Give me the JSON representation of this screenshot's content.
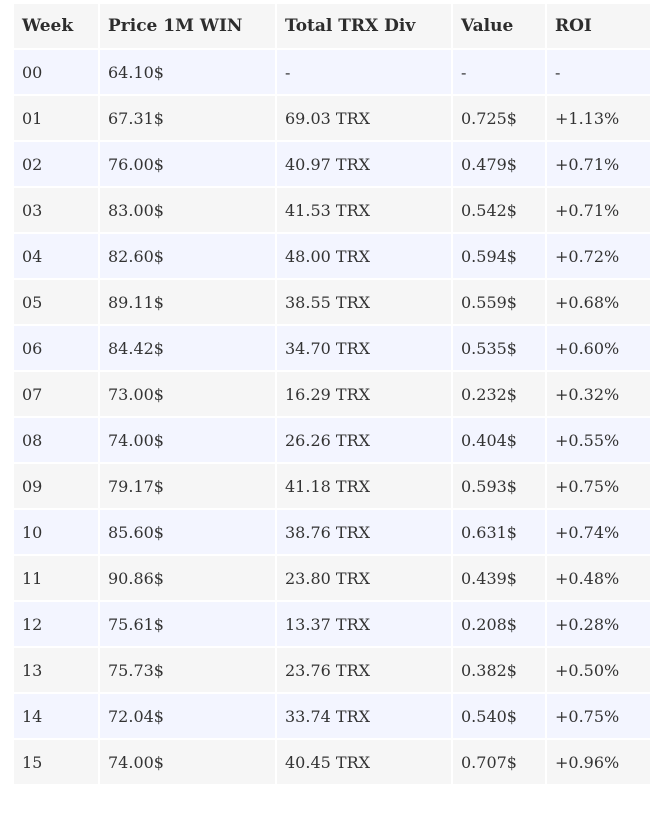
{
  "table": {
    "headers": [
      "Week",
      "Price 1M WIN",
      "Total TRX Div",
      "Value",
      "ROI"
    ],
    "rows": [
      [
        "00",
        "64.10$",
        "-",
        "-",
        "-"
      ],
      [
        "01",
        "67.31$",
        "69.03 TRX",
        "0.725$",
        "+1.13%"
      ],
      [
        "02",
        "76.00$",
        "40.97 TRX",
        "0.479$",
        "+0.71%"
      ],
      [
        "03",
        "83.00$",
        "41.53 TRX",
        "0.542$",
        "+0.71%"
      ],
      [
        "04",
        "82.60$",
        "48.00 TRX",
        "0.594$",
        "+0.72%"
      ],
      [
        "05",
        "89.11$",
        "38.55 TRX",
        "0.559$",
        "+0.68%"
      ],
      [
        "06",
        "84.42$",
        "34.70 TRX",
        "0.535$",
        "+0.60%"
      ],
      [
        "07",
        "73.00$",
        "16.29 TRX",
        "0.232$",
        "+0.32%"
      ],
      [
        "08",
        "74.00$",
        "26.26 TRX",
        "0.404$",
        "+0.55%"
      ],
      [
        "09",
        "79.17$",
        "41.18 TRX",
        "0.593$",
        "+0.75%"
      ],
      [
        "10",
        "85.60$",
        "38.76 TRX",
        "0.631$",
        "+0.74%"
      ],
      [
        "11",
        "90.86$",
        "23.80 TRX",
        "0.439$",
        "+0.48%"
      ],
      [
        "12",
        "75.61$",
        "13.37 TRX",
        "0.208$",
        "+0.28%"
      ],
      [
        "13",
        "75.73$",
        "23.76 TRX",
        "0.382$",
        "+0.50%"
      ],
      [
        "14",
        "72.04$",
        "33.74 TRX",
        "0.540$",
        "+0.75%"
      ],
      [
        "15",
        "74.00$",
        "40.45 TRX",
        "0.707$",
        "+0.96%"
      ]
    ]
  }
}
